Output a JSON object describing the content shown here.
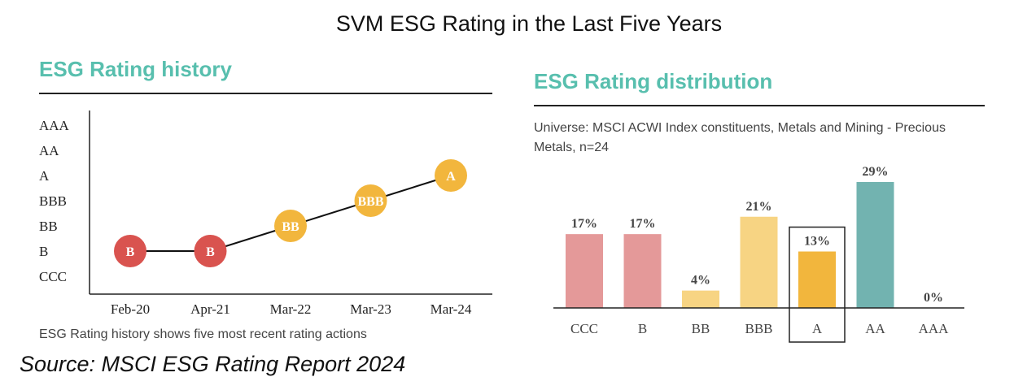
{
  "header": {
    "title": "SVM ESG Rating in the Last Five Years"
  },
  "source": "Source: MSCI ESG Rating Report 2024",
  "colors": {
    "title_teal": "#58bfae",
    "rating_red": "#d9534f",
    "rating_orange": "#f2b63d",
    "bar_red": "#e49999",
    "bar_light_orange": "#f7d483",
    "bar_orange": "#f2b63d",
    "bar_teal": "#72b3b0"
  },
  "chart_data": [
    {
      "type": "line",
      "title": "ESG Rating history",
      "caption": "ESG Rating history shows five most recent rating actions",
      "y_categories": [
        "CCC",
        "B",
        "BB",
        "BBB",
        "A",
        "AA",
        "AAA"
      ],
      "x": [
        "Feb-20",
        "Apr-21",
        "Mar-22",
        "Mar-23",
        "Mar-24"
      ],
      "values": [
        "B",
        "B",
        "BB",
        "BBB",
        "A"
      ],
      "marker_colors": [
        "#d9534f",
        "#d9534f",
        "#f2b63d",
        "#f2b63d",
        "#f2b63d"
      ]
    },
    {
      "type": "bar",
      "title": "ESG Rating distribution",
      "subtitle": "Universe: MSCI ACWI Index constituents, Metals and Mining - Precious Metals, n=24",
      "subtitle_lines": [
        "Universe: MSCI ACWI Index constituents, Metals and Mining - Precious",
        "Metals, n=24"
      ],
      "categories": [
        "CCC",
        "B",
        "BB",
        "BBB",
        "A",
        "AA",
        "AAA"
      ],
      "values": [
        17,
        17,
        4,
        21,
        13,
        29,
        0
      ],
      "labels": [
        "17%",
        "17%",
        "4%",
        "21%",
        "13%",
        "29%",
        "0%"
      ],
      "bar_colors": [
        "#e49999",
        "#e49999",
        "#f7d483",
        "#f7d483",
        "#f2b63d",
        "#72b3b0",
        "#72b3b0"
      ],
      "highlight": "A"
    }
  ]
}
